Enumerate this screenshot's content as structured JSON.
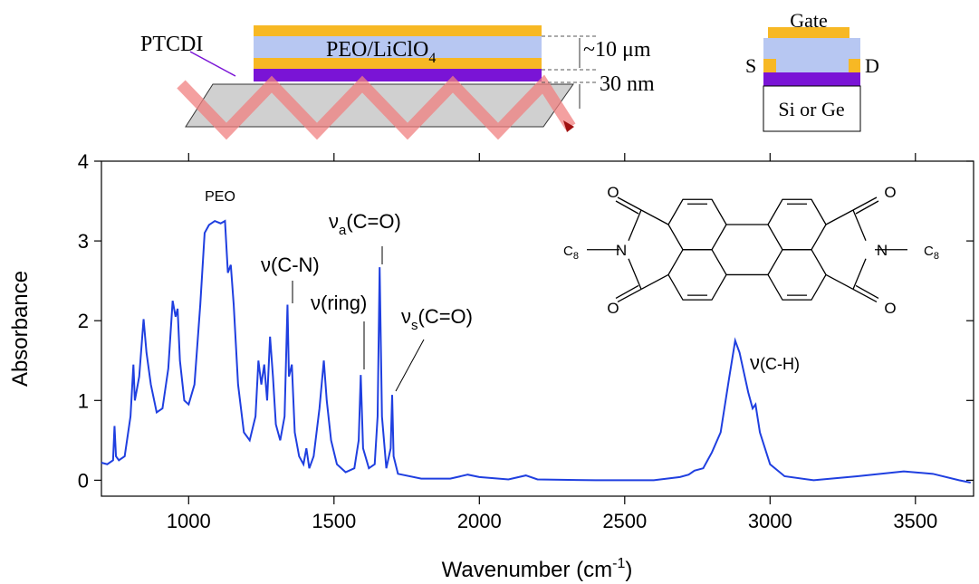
{
  "chart_data": {
    "type": "line",
    "color": "#1f3fe0",
    "ylabel": "Absorbance",
    "xlabel": [
      "Wavenumber (cm",
      "-1",
      ")"
    ],
    "xlim": [
      700,
      3700
    ],
    "xticks": [
      1000,
      1500,
      2000,
      2500,
      3000,
      3500
    ],
    "ylim": [
      -0.2,
      4
    ],
    "yticks": [
      0,
      1,
      2,
      3,
      4
    ],
    "annotations": [
      [
        "PEO"
      ],
      [
        "ν",
        "(C-N)"
      ],
      [
        "ν",
        "(ring)"
      ],
      [
        "ν",
        "a",
        "(C=O)"
      ],
      [
        "ν",
        "s",
        "(C=O)"
      ],
      [
        "ν",
        "(C-H)"
      ]
    ],
    "x": [
      700,
      720,
      740,
      745,
      750,
      760,
      780,
      800,
      810,
      815,
      830,
      845,
      855,
      870,
      890,
      910,
      930,
      945,
      955,
      962,
      970,
      985,
      1000,
      1020,
      1040,
      1055,
      1070,
      1090,
      1110,
      1125,
      1135,
      1145,
      1155,
      1170,
      1190,
      1210,
      1230,
      1240,
      1250,
      1260,
      1270,
      1280,
      1290,
      1300,
      1315,
      1330,
      1340,
      1345,
      1355,
      1365,
      1380,
      1395,
      1405,
      1415,
      1430,
      1450,
      1465,
      1475,
      1490,
      1510,
      1540,
      1570,
      1585,
      1592,
      1600,
      1620,
      1640,
      1650,
      1657,
      1665,
      1680,
      1695,
      1700,
      1705,
      1720,
      1800,
      1900,
      1960,
      2000,
      2100,
      2160,
      2200,
      2400,
      2600,
      2690,
      2720,
      2740,
      2770,
      2800,
      2830,
      2860,
      2880,
      2895,
      2910,
      2925,
      2940,
      2950,
      2965,
      3000,
      3050,
      3150,
      3300,
      3460,
      3560,
      3650,
      3690
    ],
    "values": [
      0.22,
      0.2,
      0.25,
      0.68,
      0.3,
      0.25,
      0.3,
      0.8,
      1.45,
      1.0,
      1.3,
      2.02,
      1.6,
      1.2,
      0.85,
      0.9,
      1.4,
      2.25,
      2.05,
      2.15,
      1.5,
      1.0,
      0.95,
      1.2,
      2.2,
      3.1,
      3.2,
      3.25,
      3.22,
      3.25,
      2.6,
      2.7,
      2.2,
      1.2,
      0.6,
      0.5,
      0.8,
      1.5,
      1.2,
      1.45,
      1.0,
      1.8,
      1.3,
      0.7,
      0.5,
      0.8,
      2.2,
      1.3,
      1.45,
      0.6,
      0.3,
      0.2,
      0.4,
      0.15,
      0.3,
      0.9,
      1.5,
      1.0,
      0.5,
      0.2,
      0.1,
      0.15,
      0.5,
      1.32,
      0.4,
      0.15,
      0.2,
      0.8,
      2.67,
      0.8,
      0.15,
      0.4,
      1.07,
      0.3,
      0.08,
      0.02,
      0.02,
      0.07,
      0.04,
      0.01,
      0.06,
      0.01,
      0.0,
      0.0,
      0.04,
      0.07,
      0.12,
      0.15,
      0.35,
      0.6,
      1.3,
      1.75,
      1.6,
      1.35,
      1.1,
      0.9,
      0.95,
      0.6,
      0.2,
      0.05,
      0.0,
      0.05,
      0.11,
      0.08,
      0.0,
      -0.03
    ]
  },
  "diagram": {
    "ptcdi": "PTCDI",
    "electrolyte": [
      "PEO/LiClO",
      "4"
    ],
    "thickness": "~10 μm",
    "film": "30 nm",
    "gate": "Gate",
    "source": "S",
    "drain": "D",
    "substrate": "Si or Ge"
  },
  "molecule": {
    "oxygen": "O",
    "nitrogen": "N",
    "chain": [
      "C",
      "8"
    ]
  }
}
